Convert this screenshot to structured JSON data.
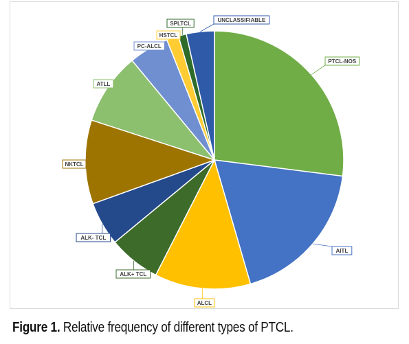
{
  "chart_data": {
    "type": "pie",
    "slices": [
      {
        "label": "PTCL-NOS",
        "value": 27.0,
        "color": "#70ad47"
      },
      {
        "label": "AITL",
        "value": 18.5,
        "color": "#4472c4"
      },
      {
        "label": "ALCL",
        "value": 12.0,
        "color": "#ffc000"
      },
      {
        "label": "ALK+ TCL",
        "value": 6.5,
        "color": "#3d6b2a"
      },
      {
        "label": "ALK- TCL",
        "value": 5.5,
        "color": "#244a8c"
      },
      {
        "label": "NKTCL",
        "value": 10.5,
        "color": "#9e7400"
      },
      {
        "label": "ATLL",
        "value": 9.0,
        "color": "#8cbf6e"
      },
      {
        "label": "PC-ALCL",
        "value": 5.0,
        "color": "#6f8fd1"
      },
      {
        "label": "HSTCL",
        "value": 1.5,
        "color": "#ffcc33"
      },
      {
        "label": "SPLTCL",
        "value": 1.0,
        "color": "#2f6b2a"
      },
      {
        "label": "UNCLASSIFIABLE",
        "value": 3.5,
        "color": "#2f5aa8"
      }
    ]
  },
  "caption": {
    "label": "Figure 1.",
    "text": " Relative frequency of different types of PTCL."
  }
}
